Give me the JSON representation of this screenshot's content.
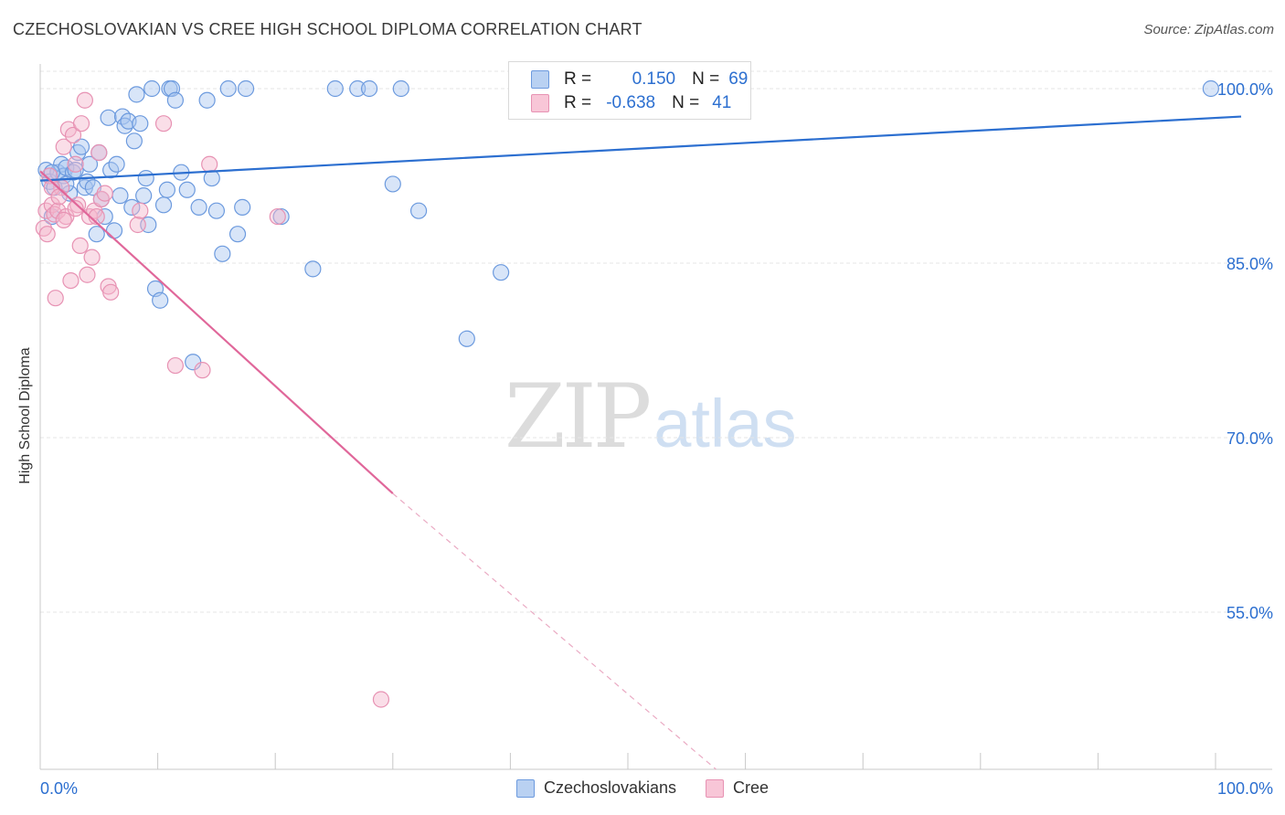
{
  "header": {
    "title": "CZECHOSLOVAKIAN VS CREE HIGH SCHOOL DIPLOMA CORRELATION CHART",
    "source": "Source: ZipAtlas.com"
  },
  "watermark": {
    "zip": "ZIP",
    "atlas": "atlas"
  },
  "legend": {
    "rows": [
      {
        "r_label": "R =",
        "r_value": "0.150",
        "n_label": "N =",
        "n_value": "69"
      },
      {
        "r_label": "R =",
        "r_value": "-0.638",
        "n_label": "N =",
        "n_value": "41"
      }
    ]
  },
  "colors": {
    "blue": "#2c6fd0",
    "blue_fill": "#a9c6ef",
    "pink": "#e0679a",
    "pink_fill": "#f4b6cc",
    "axis_text": "#2c6fd0",
    "grid": "#e6e6e6"
  },
  "chart_data": {
    "type": "scatter",
    "title": "CZECHOSLOVAKIAN VS CREE HIGH SCHOOL DIPLOMA CORRELATION CHART",
    "xlabel": "",
    "ylabel": "High School Diploma",
    "xlim": [
      0,
      100
    ],
    "ylim": [
      40,
      102
    ],
    "x_tick_labels": [
      "0.0%",
      "100.0%"
    ],
    "y_ticks": [
      55,
      70,
      85,
      100
    ],
    "y_tick_labels": [
      "55.0%",
      "70.0%",
      "85.0%",
      "100.0%"
    ],
    "grid": true,
    "legend": [
      "Czechoslovakians",
      "Cree"
    ],
    "series": [
      {
        "name": "Czechoslovakians",
        "r": 0.15,
        "n": 69,
        "trend": {
          "x0": 0,
          "y0": 92.1,
          "x1": 100,
          "y1": 97.6
        },
        "points": [
          [
            0.5,
            93.0
          ],
          [
            0.8,
            92.0
          ],
          [
            1.0,
            89.0
          ],
          [
            1.2,
            91.5
          ],
          [
            1.5,
            92.8
          ],
          [
            1.8,
            93.5
          ],
          [
            2.0,
            92.5
          ],
          [
            2.2,
            93.2
          ],
          [
            2.5,
            91.0
          ],
          [
            2.8,
            92.8
          ],
          [
            3.0,
            93.0
          ],
          [
            3.2,
            94.5
          ],
          [
            3.5,
            95.0
          ],
          [
            3.8,
            91.5
          ],
          [
            4.0,
            92.0
          ],
          [
            4.2,
            93.5
          ],
          [
            4.5,
            91.5
          ],
          [
            4.8,
            87.5
          ],
          [
            5.0,
            94.5
          ],
          [
            5.2,
            90.5
          ],
          [
            5.5,
            89.0
          ],
          [
            5.8,
            97.5
          ],
          [
            6.0,
            93.0
          ],
          [
            6.3,
            87.8
          ],
          [
            6.5,
            93.5
          ],
          [
            6.8,
            90.8
          ],
          [
            7.0,
            97.6
          ],
          [
            7.2,
            96.8
          ],
          [
            7.5,
            97.2
          ],
          [
            7.8,
            89.8
          ],
          [
            8.0,
            95.5
          ],
          [
            8.2,
            99.5
          ],
          [
            8.5,
            97.0
          ],
          [
            8.8,
            90.8
          ],
          [
            9.0,
            92.3
          ],
          [
            9.2,
            88.3
          ],
          [
            9.5,
            100.0
          ],
          [
            9.8,
            82.8
          ],
          [
            10.2,
            81.8
          ],
          [
            10.5,
            90.0
          ],
          [
            10.8,
            91.3
          ],
          [
            11.0,
            100.0
          ],
          [
            11.2,
            100.0
          ],
          [
            11.5,
            99.0
          ],
          [
            12.0,
            92.8
          ],
          [
            12.5,
            91.3
          ],
          [
            13.0,
            76.5
          ],
          [
            13.5,
            89.8
          ],
          [
            14.2,
            99.0
          ],
          [
            14.6,
            92.3
          ],
          [
            15.0,
            89.5
          ],
          [
            15.5,
            85.8
          ],
          [
            16.0,
            100.0
          ],
          [
            16.8,
            87.5
          ],
          [
            17.2,
            89.8
          ],
          [
            17.5,
            100.0
          ],
          [
            20.5,
            89.0
          ],
          [
            23.2,
            84.5
          ],
          [
            25.1,
            100.0
          ],
          [
            27.0,
            100.0
          ],
          [
            28.0,
            100.0
          ],
          [
            30.0,
            91.8
          ],
          [
            30.7,
            100.0
          ],
          [
            32.2,
            89.5
          ],
          [
            36.3,
            78.5
          ],
          [
            39.2,
            84.2
          ],
          [
            99.6,
            100.0
          ],
          [
            1.0,
            92.8
          ],
          [
            2.2,
            91.8
          ]
        ]
      },
      {
        "name": "Cree",
        "r": -0.638,
        "n": 41,
        "trend": {
          "x0": 0,
          "y0": 92.9,
          "x1": 30,
          "y1": 65.2,
          "dash_x1": 57.5,
          "dash_y1": 40
        },
        "points": [
          [
            0.3,
            88.0
          ],
          [
            0.5,
            89.5
          ],
          [
            0.8,
            92.5
          ],
          [
            1.0,
            90.0
          ],
          [
            1.2,
            89.2
          ],
          [
            1.3,
            82.0
          ],
          [
            1.5,
            89.5
          ],
          [
            1.8,
            91.5
          ],
          [
            2.0,
            95.0
          ],
          [
            2.2,
            89.0
          ],
          [
            2.4,
            96.5
          ],
          [
            2.6,
            83.5
          ],
          [
            2.8,
            96.0
          ],
          [
            3.0,
            93.5
          ],
          [
            3.2,
            90.0
          ],
          [
            3.4,
            86.5
          ],
          [
            3.5,
            97.0
          ],
          [
            3.8,
            99.0
          ],
          [
            4.0,
            84.0
          ],
          [
            4.2,
            89.0
          ],
          [
            4.4,
            85.5
          ],
          [
            4.6,
            89.5
          ],
          [
            4.8,
            89.0
          ],
          [
            5.0,
            94.5
          ],
          [
            5.2,
            90.5
          ],
          [
            5.5,
            91.0
          ],
          [
            5.8,
            83.0
          ],
          [
            6.0,
            82.5
          ],
          [
            8.3,
            88.3
          ],
          [
            8.5,
            89.5
          ],
          [
            10.5,
            97.0
          ],
          [
            11.5,
            76.2
          ],
          [
            13.8,
            75.8
          ],
          [
            14.4,
            93.5
          ],
          [
            20.2,
            89.0
          ],
          [
            29.0,
            47.5
          ],
          [
            1.0,
            91.5
          ],
          [
            0.6,
            87.5
          ],
          [
            2.0,
            88.7
          ],
          [
            3.0,
            89.7
          ],
          [
            1.6,
            90.7
          ]
        ]
      }
    ]
  }
}
